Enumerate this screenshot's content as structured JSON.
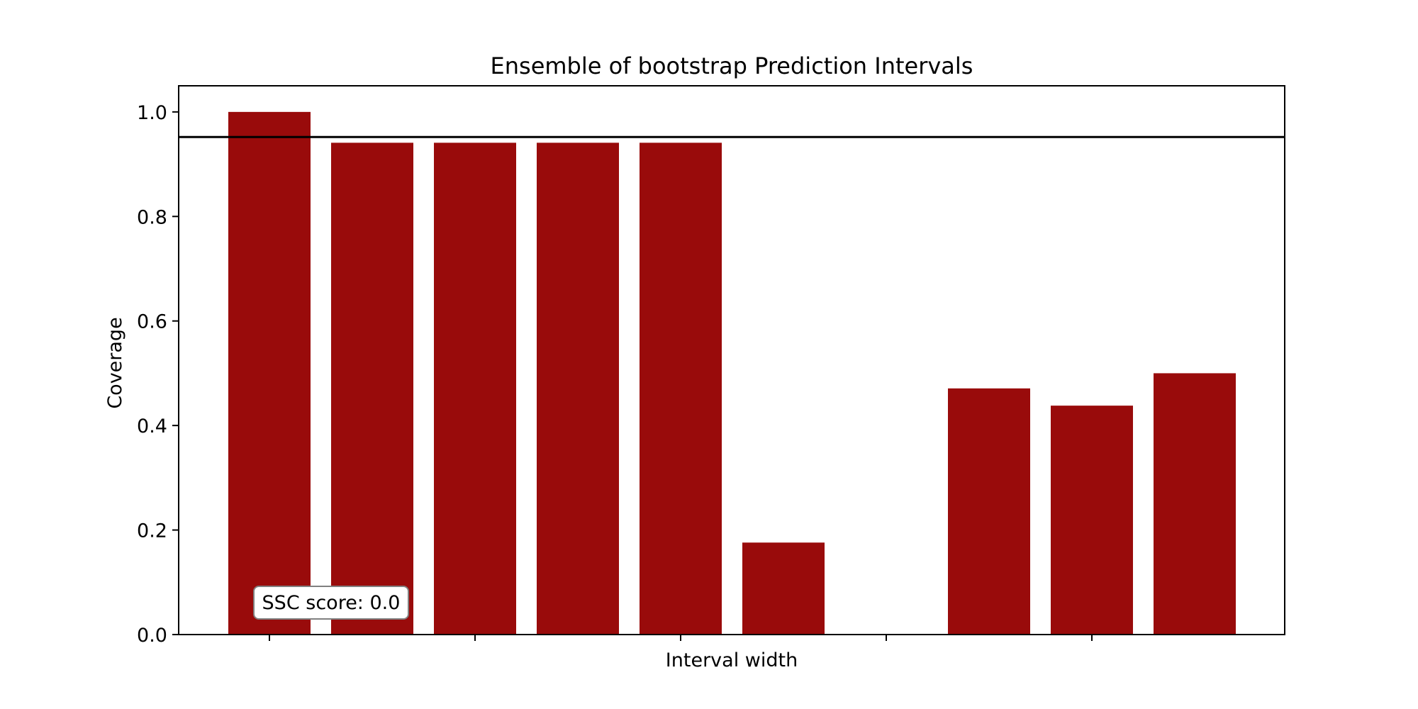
{
  "chart_data": {
    "type": "bar",
    "title": "Ensemble of bootstrap Prediction Intervals",
    "xlabel": "Interval width",
    "ylabel": "Coverage",
    "categories": [
      "",
      "",
      "",
      "",
      "",
      "",
      "",
      "",
      "",
      ""
    ],
    "values": [
      1.0,
      0.941,
      0.941,
      0.941,
      0.941,
      0.176,
      0.0,
      0.471,
      0.438,
      0.5
    ],
    "ylim": [
      0.0,
      1.05
    ],
    "yticks": [
      0.0,
      0.2,
      0.4,
      0.6,
      0.8,
      1.0
    ],
    "ytick_labels": [
      "0.0",
      "0.2",
      "0.4",
      "0.6",
      "0.8",
      "1.0"
    ],
    "xtick_bar_indices": [
      0,
      2,
      4,
      6,
      8
    ],
    "reference_line": 0.952,
    "bar_color": "#990b0b",
    "reference_line_color": "#000000",
    "grid": false,
    "legend": "none",
    "annotation": {
      "text": "SSC score: 0.0",
      "placement": "lower-left"
    }
  }
}
